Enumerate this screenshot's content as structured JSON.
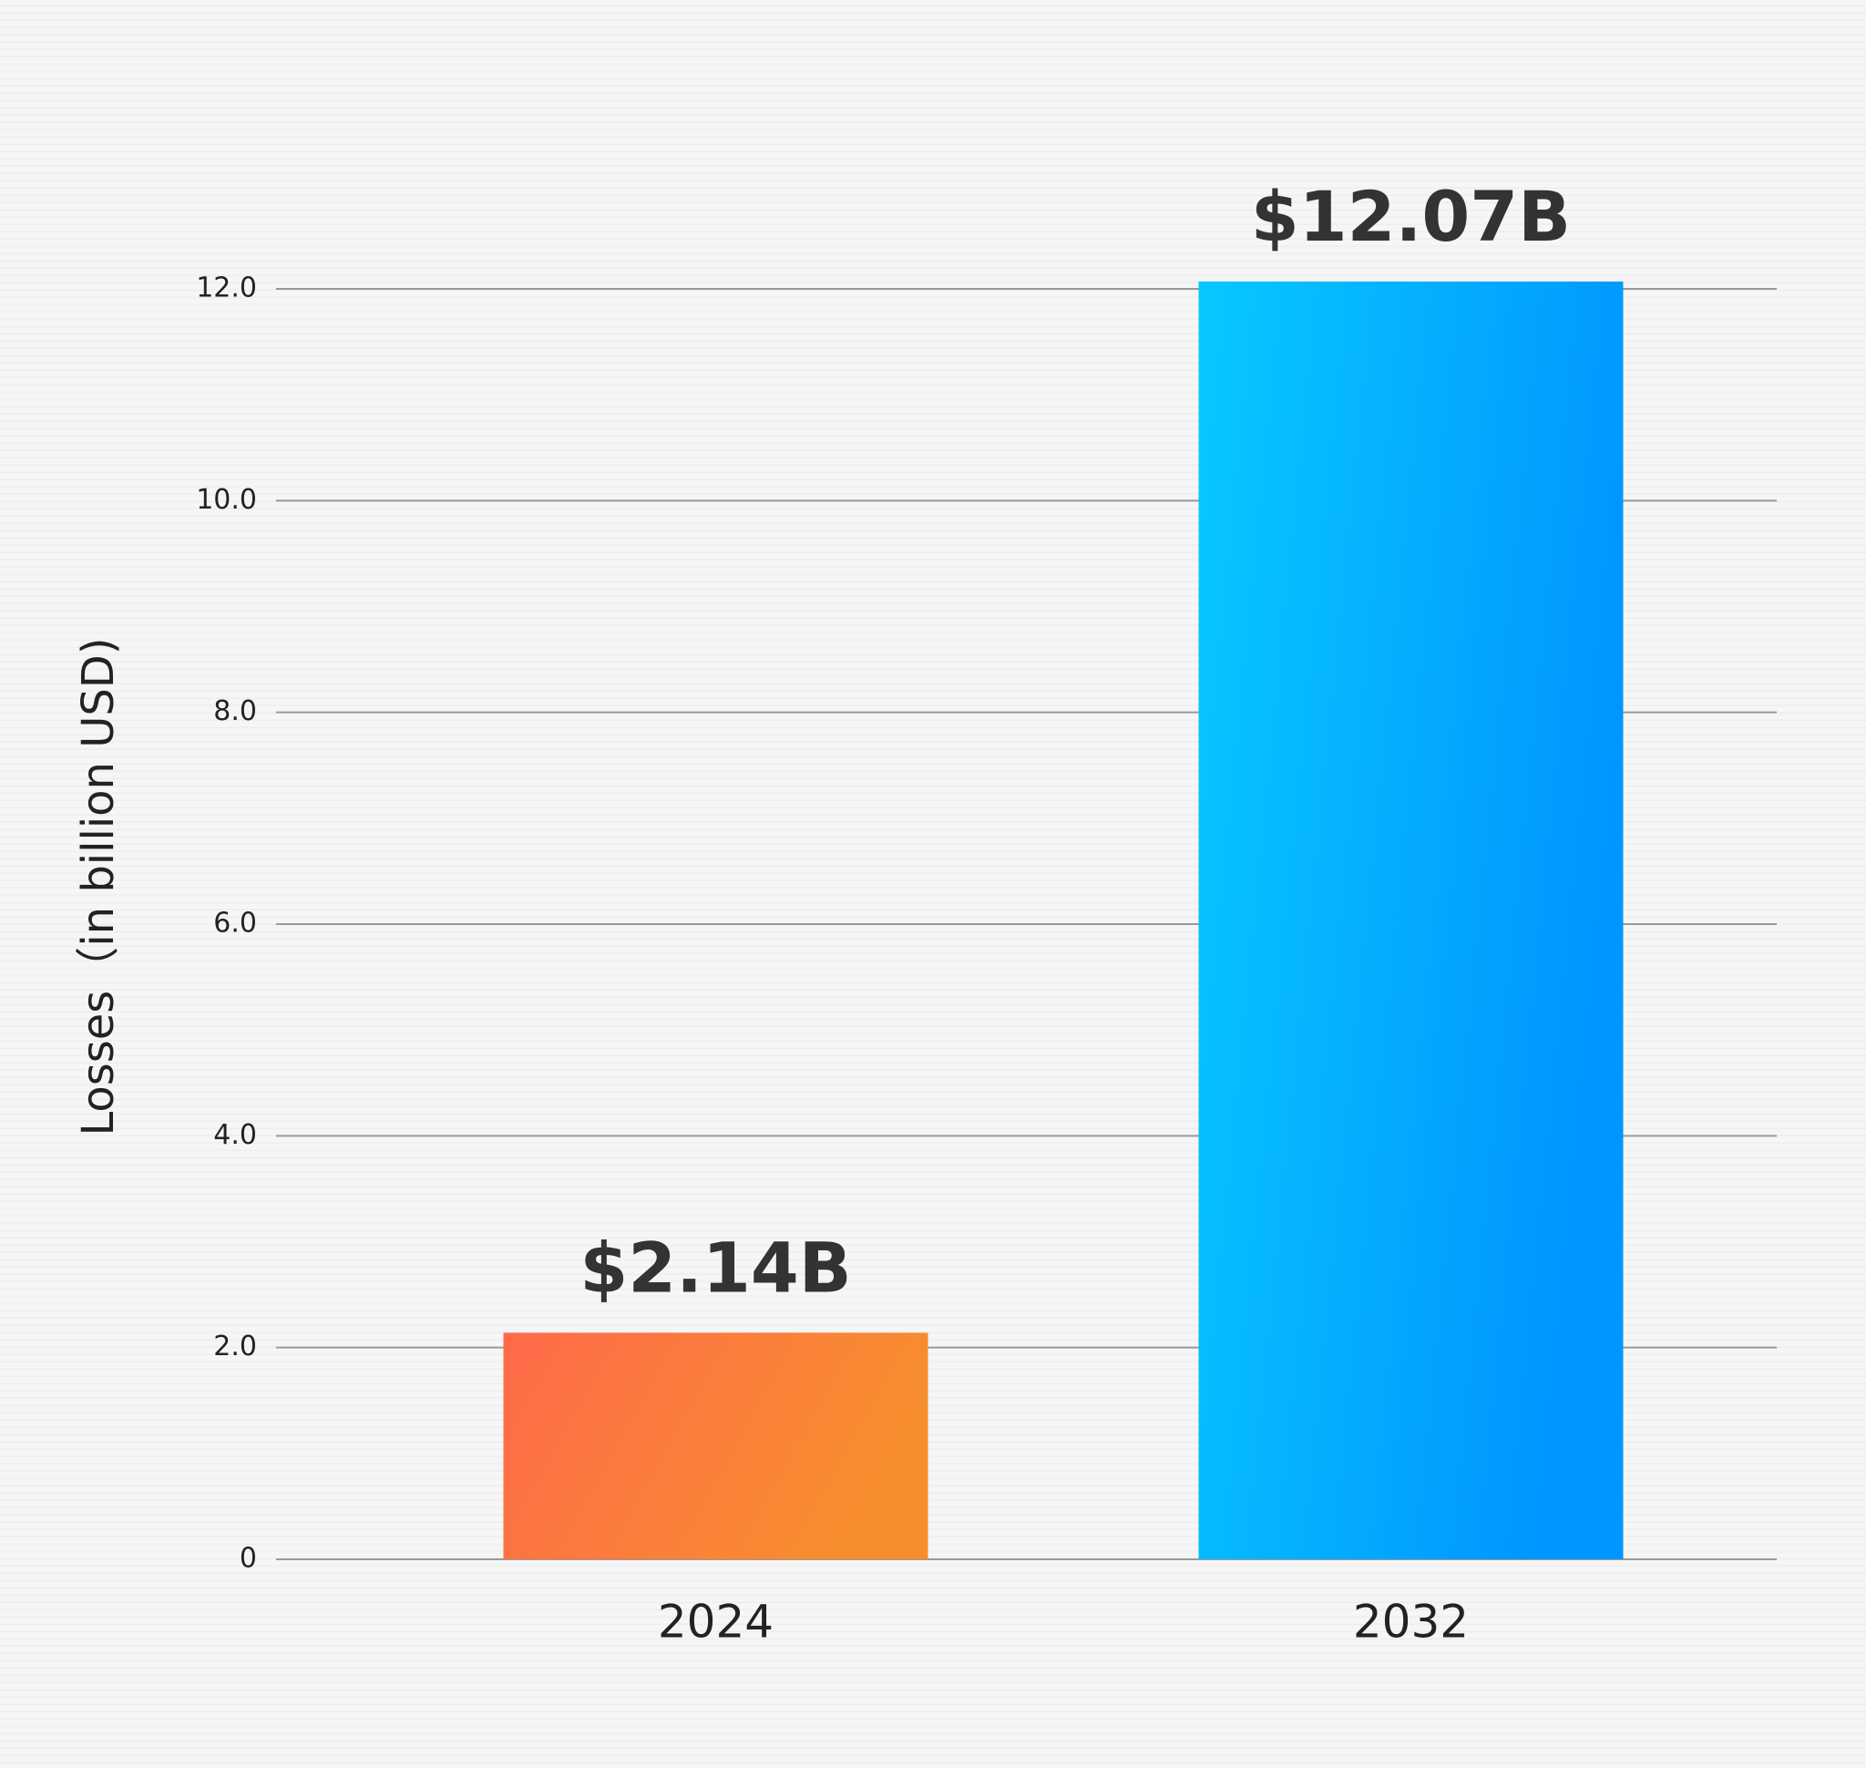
{
  "chart_data": {
    "type": "bar",
    "y_label": "Losses（in billion USD)",
    "categories": [
      "2024",
      "2032"
    ],
    "values": [
      2.14,
      12.07
    ],
    "value_labels": [
      "$2.14B",
      "$12.07B"
    ],
    "colors": [
      [
        "#ff6a4a",
        "#f78e2e"
      ],
      [
        "#08c8ff",
        "#0096ff"
      ]
    ],
    "ylim": [
      0,
      12
    ],
    "yticks": [
      0,
      {
        "value": 2,
        "label": "2.0"
      },
      {
        "value": 4,
        "label": "4.0"
      },
      {
        "value": 6,
        "label": "6.0"
      },
      {
        "value": 8,
        "label": "8.0"
      },
      {
        "value": 10,
        "label": "10.0"
      },
      {
        "value": 12,
        "label": "12.0"
      }
    ],
    "grid": true
  }
}
